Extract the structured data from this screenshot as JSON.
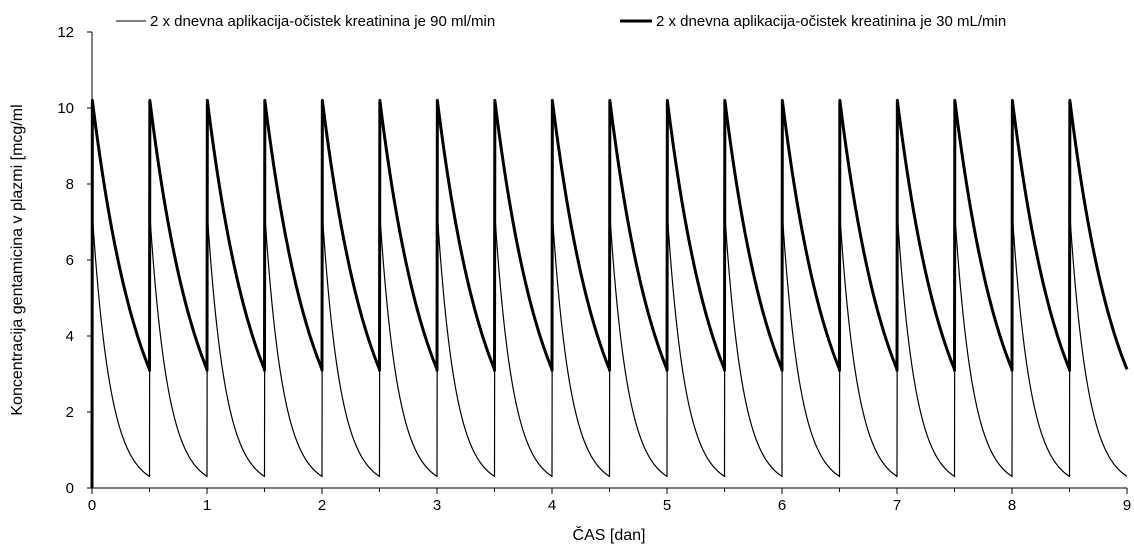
{
  "chart_data": {
    "type": "line",
    "title": "",
    "xlabel": "ČAS [dan]",
    "ylabel": "Koncentracija gentamicina v plazmi [mcg/ml",
    "xlim": [
      0,
      9
    ],
    "ylim": [
      0,
      12
    ],
    "x_ticks": [
      "0",
      "1",
      "2",
      "3",
      "4",
      "5",
      "6",
      "7",
      "8",
      "9"
    ],
    "y_ticks": [
      "0",
      "2",
      "4",
      "6",
      "8",
      "10",
      "12"
    ],
    "grid": false,
    "legend_position": "top",
    "dosing_interval_days": 0.5,
    "series": [
      {
        "name": "2 x dnevna aplikacija-očistek kreatinina je 90 ml/min",
        "style": "thin",
        "color": "#000000",
        "peak": 7.2,
        "trough": 0.3,
        "doses": 18
      },
      {
        "name": "2 x dnevna aplikacija-očistek kreatinina je 30 mL/min",
        "style": "thick",
        "color": "#000000",
        "peak": 10.2,
        "trough": 3.1,
        "doses": 18
      }
    ]
  }
}
